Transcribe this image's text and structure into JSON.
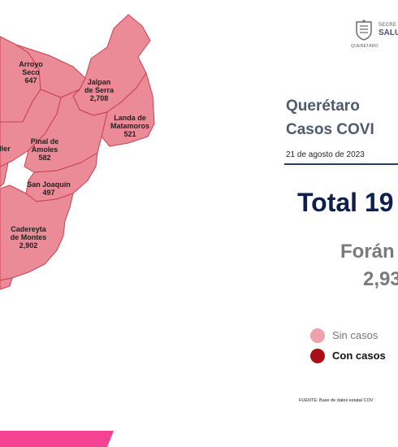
{
  "state_title": "Querétaro",
  "cases_title": "Casos COVI",
  "date": "21 de agosto de 2023",
  "total_label": "Total 19",
  "foraneos_label": "Forán",
  "foraneos_value": "2,93",
  "legend": {
    "no_cases_label": "Sin casos",
    "with_cases_label": "Con casos",
    "no_cases_color": "#eea0ab",
    "with_cases_color": "#a80f16"
  },
  "source": "FUENTE: Base de datos estatal COV",
  "logo": {
    "top_text": "SECRE",
    "main_text": "SALU",
    "bottom_text": "QUERÉTARO"
  },
  "colors": {
    "map_fill": "#ec8b98",
    "map_stroke": "#c6404f",
    "accent_bar": "#f44392",
    "navy": "#0e1f4e"
  },
  "municipalities": [
    {
      "name_lines": [
        "Arroyo",
        "Seco"
      ],
      "cases": "647"
    },
    {
      "name_lines": [
        "Jalpan",
        "de Serra"
      ],
      "cases": "2,708"
    },
    {
      "name_lines": [
        "Landa de",
        "Matamoros"
      ],
      "cases": "521"
    },
    {
      "name_lines": [
        "ller"
      ],
      "cases": ""
    },
    {
      "name_lines": [
        "Pinal de",
        "Amoles"
      ],
      "cases": "582"
    },
    {
      "name_lines": [
        "San Joaquín"
      ],
      "cases": "497"
    },
    {
      "name_lines": [
        "Cadereyta",
        "de Montes"
      ],
      "cases": "2,902"
    }
  ]
}
